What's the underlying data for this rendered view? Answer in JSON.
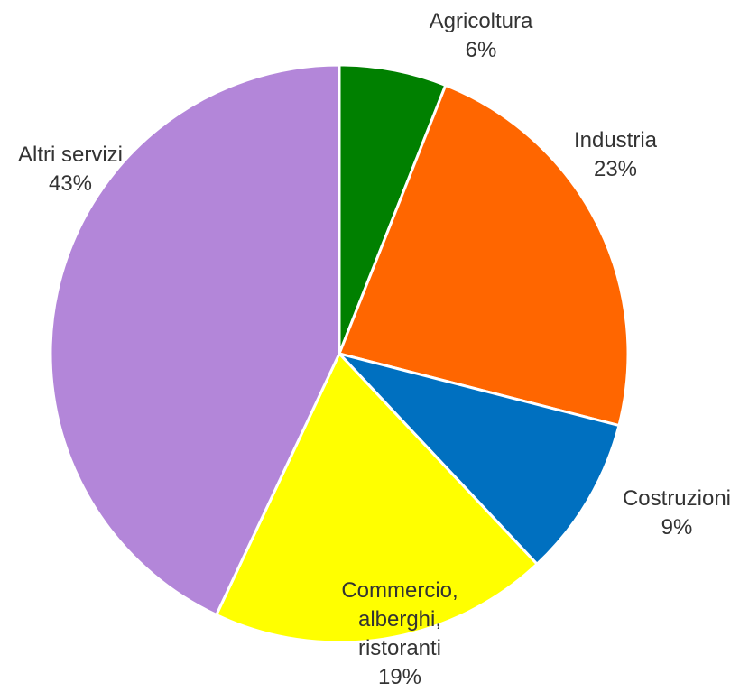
{
  "chart_data": {
    "type": "pie",
    "categories": [
      "Agricoltura",
      "Industria",
      "Costruzioni",
      "Commercio, alberghi, ristoranti",
      "Altri servizi"
    ],
    "values": [
      6,
      23,
      9,
      19,
      43
    ],
    "value_labels": [
      "6%",
      "23%",
      "9%",
      "19%",
      "43%"
    ],
    "colors": [
      "#008000",
      "#ff6600",
      "#0070c0",
      "#ffff00",
      "#b386d9"
    ]
  }
}
